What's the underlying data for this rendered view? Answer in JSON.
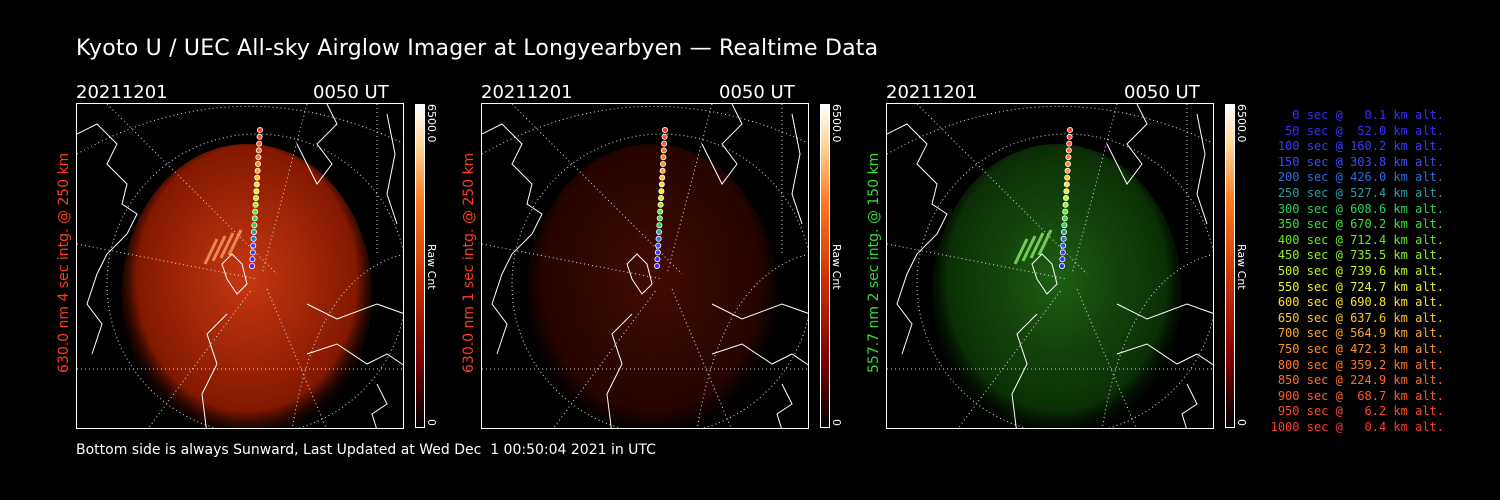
{
  "title": "Kyoto U / UEC All-sky Airglow Imager at Longyearbyen — Realtime Data",
  "panels": [
    {
      "date": "20211201",
      "time": "0050 UT",
      "side_label": "630.0 nm 4 sec intg. @ 250 km",
      "label_color": "#ff3b1f",
      "cbar_max": "6500.0",
      "cbar_min": "0",
      "cbar_unit": "Raw Cnt",
      "glow": "red"
    },
    {
      "date": "20211201",
      "time": "0050 UT",
      "side_label": "630.0 nm 1 sec intg. @ 250 km",
      "label_color": "#ff3b1f",
      "cbar_max": "6500.0",
      "cbar_min": "0",
      "cbar_unit": "Raw Cnt",
      "glow": "darkred"
    },
    {
      "date": "20211201",
      "time": "0050 UT",
      "side_label": "557.7 nm 2 sec intg. @ 150 km",
      "label_color": "#33dd33",
      "cbar_max": "6500.0",
      "cbar_min": "0",
      "cbar_unit": "Raw Cnt",
      "glow": "green"
    }
  ],
  "legend": [
    {
      "text": "0 sec @   0.1 km alt.",
      "color": "#3a2bff"
    },
    {
      "text": "50 sec @  52.0 km alt.",
      "color": "#3a2bff"
    },
    {
      "text": "100 sec @ 160.2 km alt.",
      "color": "#3a3bff"
    },
    {
      "text": "150 sec @ 303.8 km alt.",
      "color": "#3a4bff"
    },
    {
      "text": "200 sec @ 426.0 km alt.",
      "color": "#2f6ddc"
    },
    {
      "text": "250 sec @ 527.4 km alt.",
      "color": "#2a9fa8"
    },
    {
      "text": "300 sec @ 608.6 km alt.",
      "color": "#2fcf5c"
    },
    {
      "text": "350 sec @ 670.2 km alt.",
      "color": "#3ee02f"
    },
    {
      "text": "400 sec @ 712.4 km alt.",
      "color": "#62ea1f"
    },
    {
      "text": "450 sec @ 735.5 km alt.",
      "color": "#90f020"
    },
    {
      "text": "500 sec @ 739.6 km alt.",
      "color": "#c2f21f"
    },
    {
      "text": "550 sec @ 724.7 km alt.",
      "color": "#eaf02a"
    },
    {
      "text": "600 sec @ 690.8 km alt.",
      "color": "#ffe02a"
    },
    {
      "text": "650 sec @ 637.6 km alt.",
      "color": "#ffc42a"
    },
    {
      "text": "700 sec @ 564.9 km alt.",
      "color": "#ffa62a"
    },
    {
      "text": "750 sec @ 472.3 km alt.",
      "color": "#ff902a"
    },
    {
      "text": "800 sec @ 359.2 km alt.",
      "color": "#ff7a2a"
    },
    {
      "text": "850 sec @ 224.9 km alt.",
      "color": "#ff6a2a"
    },
    {
      "text": "900 sec @  68.7 km alt.",
      "color": "#ff5a2a"
    },
    {
      "text": "950 sec @   6.2 km alt.",
      "color": "#ff4a2a"
    },
    {
      "text": "1000 sec @   0.4 km alt.",
      "color": "#ff3a2a"
    }
  ],
  "footer": "Bottom side is always Sunward, Last Updated at Wed Dec  1 00:50:04 2021 in UTC"
}
